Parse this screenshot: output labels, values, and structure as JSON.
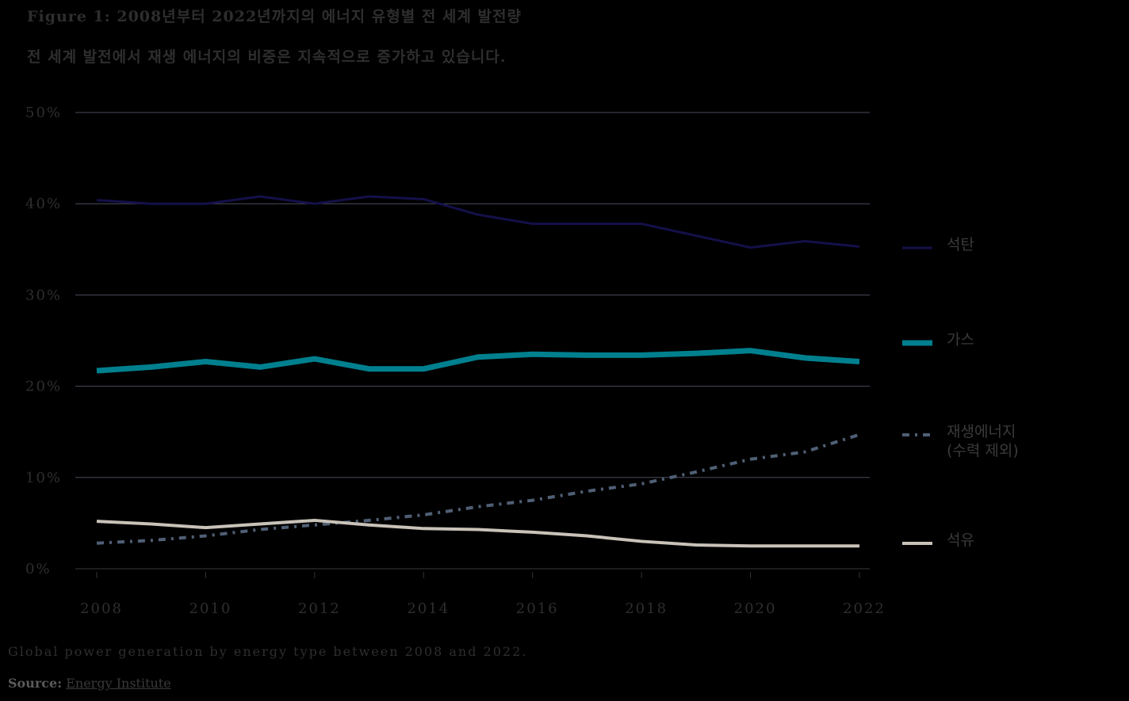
{
  "title": "Figure 1: 2008년부터 2022년까지의 에너지 유형별 전 세계 발전량",
  "subtitle": "전 세계 발전에서 재생 에너지의 비중은 지속적으로 증가하고 있습니다.",
  "caption": "Global power generation by energy type between 2008 and 2022.",
  "source": {
    "label": "Source:",
    "link_text": "Energy Institute"
  },
  "chart_data": {
    "type": "line",
    "x": [
      2008,
      2009,
      2010,
      2011,
      2012,
      2013,
      2014,
      2015,
      2016,
      2017,
      2018,
      2019,
      2020,
      2021,
      2022
    ],
    "x_tick_labels": [
      "2008",
      "2010",
      "2012",
      "2014",
      "2016",
      "2018",
      "2020",
      "2022"
    ],
    "y_tick_labels": [
      "0%",
      "10%",
      "20%",
      "30%",
      "40%",
      "50%"
    ],
    "ylim": [
      0,
      50
    ],
    "grid": true,
    "legend_position": "right",
    "series": [
      {
        "name": "석탄",
        "color": "#14104a",
        "style": "solid",
        "values": [
          40.4,
          40.0,
          40.0,
          40.8,
          40.0,
          40.8,
          40.5,
          38.8,
          37.8,
          37.8,
          37.8,
          36.5,
          35.2,
          35.9,
          35.3
        ]
      },
      {
        "name": "가스",
        "color": "#00808f",
        "style": "thick",
        "values": [
          21.7,
          22.1,
          22.7,
          22.1,
          23.0,
          21.9,
          21.9,
          23.2,
          23.5,
          23.4,
          23.4,
          23.6,
          23.9,
          23.1,
          22.7
        ]
      },
      {
        "name": "재생에너지",
        "name_line2": "(수력 제외)",
        "color": "#4f5f75",
        "style": "dashdot",
        "values": [
          2.8,
          3.1,
          3.6,
          4.3,
          4.8,
          5.3,
          5.9,
          6.8,
          7.5,
          8.5,
          9.3,
          10.6,
          12.0,
          12.8,
          14.7
        ]
      },
      {
        "name": "석유",
        "color": "#c8c2b8",
        "style": "solid",
        "values": [
          5.2,
          4.9,
          4.5,
          4.9,
          5.3,
          4.8,
          4.4,
          4.3,
          4.0,
          3.6,
          3.0,
          2.6,
          2.5,
          2.5,
          2.5
        ]
      }
    ]
  }
}
